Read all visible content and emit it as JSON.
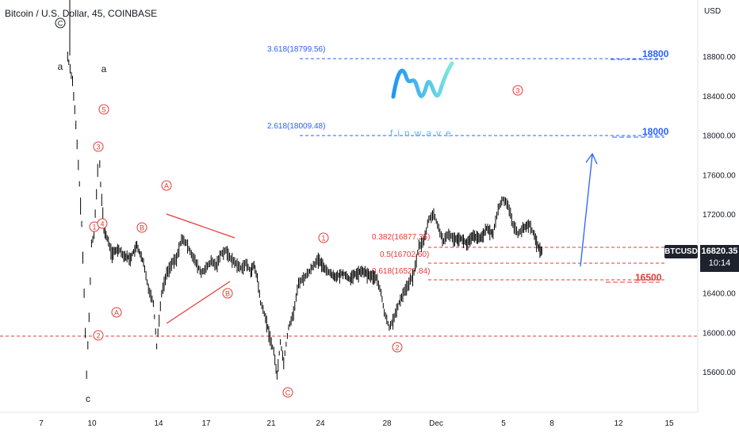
{
  "header": {
    "title": "Bitcoin / U.S. Dollar, 45, COINBASE"
  },
  "axis_unit": "USD",
  "last_price_tag": {
    "symbol": "BTCUSD",
    "price": "16820.35",
    "countdown": "10:14"
  },
  "colors": {
    "wave": "#e53935",
    "target": "#2962ff",
    "candle": "#000000",
    "grid_axis": "#131722"
  },
  "logo": {
    "text": "finwave",
    "icon": "finwave-wave-logo"
  },
  "chart_data": {
    "type": "line",
    "title": "Bitcoin / U.S. Dollar, 45, COINBASE",
    "xlabel": "",
    "ylabel": "USD",
    "ylim": [
      15300,
      19230
    ],
    "x_ticks": [
      "7",
      "10",
      "14",
      "17",
      "21",
      "24",
      "28",
      "Dec",
      "5",
      "8",
      "12",
      "15"
    ],
    "y_ticks": [
      "15600.00",
      "16000.00",
      "16400.00",
      "16800.00",
      "17200.00",
      "17600.00",
      "18000.00",
      "18400.00",
      "18800.00"
    ],
    "series": [
      {
        "values": [
          [
            8.6,
            18800
          ],
          [
            8.9,
            18550
          ],
          [
            9.1,
            18100
          ],
          [
            9.25,
            17700
          ],
          [
            9.45,
            17100
          ],
          [
            9.6,
            16400
          ],
          [
            9.75,
            15580
          ],
          [
            9.9,
            16150
          ],
          [
            10.05,
            16900
          ],
          [
            10.2,
            17000
          ],
          [
            10.35,
            17400
          ],
          [
            10.5,
            17900
          ],
          [
            10.6,
            17500
          ],
          [
            10.8,
            17050
          ],
          [
            11.0,
            16950
          ],
          [
            11.3,
            16800
          ],
          [
            11.7,
            16850
          ],
          [
            12.0,
            16780
          ],
          [
            12.4,
            16750
          ],
          [
            12.8,
            16880
          ],
          [
            13.2,
            16700
          ],
          [
            13.5,
            16450
          ],
          [
            13.8,
            16300
          ],
          [
            14.0,
            15860
          ],
          [
            14.3,
            16400
          ],
          [
            14.6,
            16600
          ],
          [
            14.9,
            16700
          ],
          [
            15.2,
            16750
          ],
          [
            15.5,
            16950
          ],
          [
            15.8,
            16900
          ],
          [
            16.1,
            16800
          ],
          [
            16.4,
            16700
          ],
          [
            16.7,
            16600
          ],
          [
            17.0,
            16650
          ],
          [
            17.3,
            16720
          ],
          [
            17.6,
            16680
          ],
          [
            17.9,
            16800
          ],
          [
            18.2,
            16830
          ],
          [
            18.5,
            16750
          ],
          [
            18.8,
            16700
          ],
          [
            19.1,
            16650
          ],
          [
            19.4,
            16700
          ],
          [
            19.7,
            16620
          ],
          [
            19.9,
            16680
          ],
          [
            20.1,
            16550
          ],
          [
            20.3,
            16300
          ],
          [
            20.6,
            16150
          ],
          [
            20.8,
            16000
          ],
          [
            21.1,
            15800
          ],
          [
            21.3,
            15560
          ],
          [
            21.5,
            15900
          ],
          [
            21.7,
            15700
          ],
          [
            22.0,
            16050
          ],
          [
            22.3,
            16200
          ],
          [
            22.6,
            16500
          ],
          [
            22.9,
            16550
          ],
          [
            23.2,
            16600
          ],
          [
            23.5,
            16680
          ],
          [
            23.8,
            16740
          ],
          [
            24.2,
            16650
          ],
          [
            24.5,
            16600
          ],
          [
            24.9,
            16560
          ],
          [
            25.3,
            16600
          ],
          [
            25.7,
            16540
          ],
          [
            26.1,
            16600
          ],
          [
            26.5,
            16620
          ],
          [
            26.9,
            16580
          ],
          [
            27.3,
            16560
          ],
          [
            27.6,
            16400
          ],
          [
            27.8,
            16200
          ],
          [
            28.1,
            16050
          ],
          [
            28.4,
            16150
          ],
          [
            28.7,
            16300
          ],
          [
            29.0,
            16420
          ],
          [
            29.3,
            16500
          ],
          [
            29.6,
            16600
          ],
          [
            29.9,
            16880
          ],
          [
            30.2,
            16920
          ],
          [
            30.5,
            17150
          ],
          [
            30.8,
            17200
          ],
          [
            31.1,
            17050
          ],
          [
            31.4,
            16920
          ],
          [
            31.7,
            17000
          ],
          [
            32.0,
            16950
          ],
          [
            32.4,
            16960
          ],
          [
            32.8,
            16900
          ],
          [
            33.2,
            16980
          ],
          [
            33.6,
            16950
          ],
          [
            34.0,
            17050
          ],
          [
            34.4,
            17000
          ],
          [
            34.7,
            17250
          ],
          [
            35.0,
            17350
          ],
          [
            35.3,
            17300
          ],
          [
            35.6,
            17100
          ],
          [
            35.9,
            17000
          ],
          [
            36.2,
            17050
          ],
          [
            36.6,
            17100
          ],
          [
            36.9,
            16980
          ],
          [
            37.1,
            16880
          ],
          [
            37.3,
            16830
          ],
          [
            37.4,
            16820
          ]
        ]
      }
    ],
    "annotations": {
      "wave_labels": [
        "a",
        "a",
        "c",
        "C",
        "5",
        "3",
        "1",
        "4",
        "2",
        "A",
        "B",
        "A",
        "B",
        "1",
        "2",
        "C",
        "3"
      ],
      "fib_labels": [
        "3.618(18799.56)",
        "2.618(18009.48)",
        "0.382(16877.35)",
        "0.5(16702.60)",
        "0.618(16527.84)"
      ],
      "targets": [
        "18800",
        "18000",
        "16500"
      ]
    }
  }
}
